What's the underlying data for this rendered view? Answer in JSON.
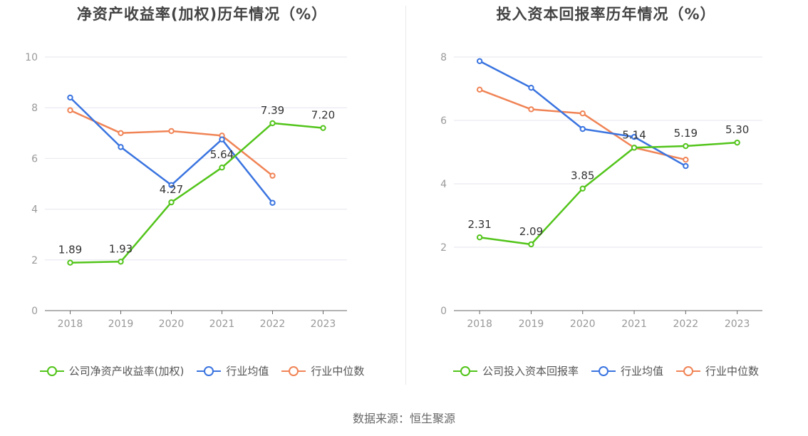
{
  "colors": {
    "company": "#52c41a",
    "industry_avg": "#3a74e0",
    "industry_median": "#f08456",
    "axis": "#666666",
    "grid": "#e6e6ef",
    "text": "#333333"
  },
  "legend_labels": {
    "left": [
      "公司净资产收益率(加权)",
      "行业均值",
      "行业中位数"
    ],
    "right": [
      "公司投入资本回报率",
      "行业均值",
      "行业中位数"
    ]
  },
  "source": "数据来源：恒生聚源",
  "chart_data": [
    {
      "type": "line",
      "title": "净资产收益率(加权)历年情况（%）",
      "categories": [
        "2018",
        "2019",
        "2020",
        "2021",
        "2022",
        "2023"
      ],
      "ylim": [
        0,
        10
      ],
      "yticks": [
        0,
        2,
        4,
        6,
        8,
        10
      ],
      "series": [
        {
          "name": "公司净资产收益率(加权)",
          "values": [
            1.89,
            1.93,
            4.27,
            5.64,
            7.39,
            7.2
          ],
          "labels": [
            "1.89",
            "1.93",
            "4.27",
            "5.64",
            "7.39",
            "7.20"
          ]
        },
        {
          "name": "行业均值",
          "values": [
            8.4,
            6.45,
            4.95,
            6.75,
            4.25,
            null
          ]
        },
        {
          "name": "行业中位数",
          "values": [
            7.9,
            7.0,
            7.08,
            6.9,
            5.32,
            null
          ]
        }
      ]
    },
    {
      "type": "line",
      "title": "投入资本回报率历年情况（%）",
      "categories": [
        "2018",
        "2019",
        "2020",
        "2021",
        "2022",
        "2023"
      ],
      "ylim": [
        0,
        8
      ],
      "yticks": [
        0,
        2,
        4,
        6,
        8
      ],
      "series": [
        {
          "name": "公司投入资本回报率",
          "values": [
            2.31,
            2.09,
            3.85,
            5.14,
            5.19,
            5.3
          ],
          "labels": [
            "2.31",
            "2.09",
            "3.85",
            "5.14",
            "5.19",
            "5.30"
          ]
        },
        {
          "name": "行业均值",
          "values": [
            7.87,
            7.03,
            5.73,
            5.48,
            4.56,
            null
          ]
        },
        {
          "name": "行业中位数",
          "values": [
            6.97,
            6.35,
            6.22,
            5.14,
            4.76,
            null
          ]
        }
      ]
    }
  ]
}
